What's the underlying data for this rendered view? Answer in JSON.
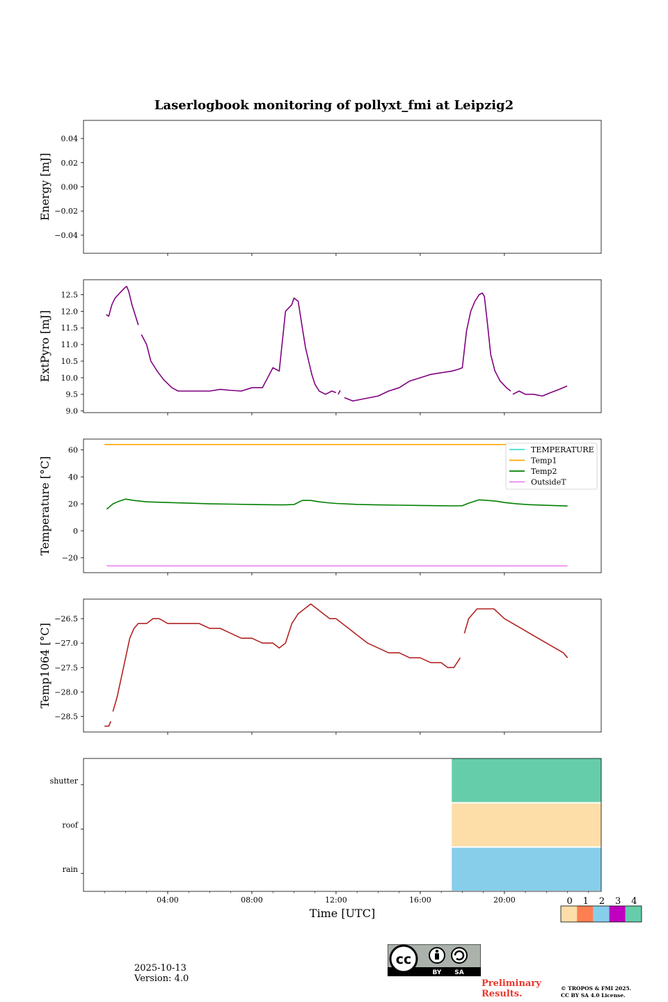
{
  "title": "Laserlogbook monitoring of pollyxt_fmi at Leipzig2",
  "footer": {
    "date": "2025-10-13",
    "version": "Version: 4.0",
    "preliminary_line1": "Preliminary",
    "preliminary_line2": "Results.",
    "copyright_line1": "© TROPOS & FMI 2025.",
    "copyright_line2": "CC BY SA 4.0 License.",
    "license_badge": {
      "by": "BY",
      "sa": "SA",
      "cc": "cc"
    }
  },
  "chart_data": [
    {
      "type": "line",
      "id": "energy",
      "ylabel": "Energy [mJ]",
      "ylim": [
        -0.055,
        0.055
      ],
      "yticks": [
        0.04,
        0.02,
        0.0,
        -0.02,
        -0.04
      ],
      "ytick_labels": [
        "0.04",
        "0.02",
        "0.00",
        "−0.02",
        "−0.04"
      ],
      "series": []
    },
    {
      "type": "line",
      "id": "extpyro",
      "ylabel": "ExtPyro [mJ]",
      "ylim": [
        8.95,
        12.95
      ],
      "yticks": [
        12.5,
        12.0,
        11.5,
        11.0,
        10.5,
        10.0,
        9.5,
        9.0
      ],
      "ytick_labels": [
        "12.5",
        "12.0",
        "11.5",
        "11.0",
        "10.5",
        "10.0",
        "9.5",
        "9.0"
      ],
      "series": [
        {
          "name": "ExtPyro",
          "color": "#800080",
          "x": [
            1.08,
            1.2,
            1.35,
            1.5,
            1.65,
            1.8,
            1.95,
            2.05,
            2.15,
            2.3,
            2.45,
            2.6,
            2.62,
            null,
            2.75,
            3.0,
            3.2,
            3.5,
            3.8,
            4.2,
            4.5,
            5.0,
            5.5,
            6.0,
            6.5,
            7.0,
            7.5,
            8.0,
            8.5,
            9.0,
            9.3,
            9.6,
            9.9,
            10.0,
            10.2,
            10.4,
            10.55,
            10.7,
            10.85,
            11.0,
            11.2,
            11.5,
            11.8,
            12.0,
            null,
            12.1,
            12.2,
            null,
            12.4,
            12.8,
            13.2,
            13.6,
            14.0,
            14.5,
            15.0,
            15.5,
            16.0,
            16.5,
            17.0,
            17.5,
            17.8,
            18.0,
            18.2,
            18.4,
            18.6,
            18.8,
            18.95,
            19.05,
            19.2,
            19.35,
            19.55,
            19.8,
            20.1,
            20.3,
            null,
            20.4,
            20.7,
            21.0,
            21.4,
            21.8,
            22.2,
            22.6,
            22.98
          ],
          "y": [
            11.9,
            11.85,
            12.2,
            12.4,
            12.5,
            12.6,
            12.7,
            12.75,
            12.6,
            12.2,
            11.9,
            11.6,
            11.6,
            null,
            11.3,
            11.0,
            10.5,
            10.2,
            9.95,
            9.7,
            9.6,
            9.6,
            9.6,
            9.6,
            9.65,
            9.62,
            9.6,
            9.7,
            9.7,
            10.3,
            10.2,
            12.0,
            12.2,
            12.4,
            12.3,
            11.5,
            10.9,
            10.5,
            10.1,
            9.8,
            9.6,
            9.5,
            9.6,
            9.55,
            null,
            9.5,
            9.62,
            null,
            9.4,
            9.3,
            9.35,
            9.4,
            9.45,
            9.6,
            9.7,
            9.9,
            10.0,
            10.1,
            10.15,
            10.2,
            10.25,
            10.3,
            11.4,
            12.0,
            12.3,
            12.5,
            12.55,
            12.45,
            11.6,
            10.7,
            10.2,
            9.9,
            9.7,
            9.6,
            null,
            9.5,
            9.6,
            9.5,
            9.5,
            9.45,
            9.55,
            9.65,
            9.75
          ]
        }
      ]
    },
    {
      "type": "line",
      "id": "temperature",
      "ylabel": "Temperature [°C]",
      "ylim": [
        -31,
        68
      ],
      "yticks": [
        60,
        40,
        20,
        0,
        -20
      ],
      "ytick_labels": [
        "60",
        "40",
        "20",
        "0",
        "−20"
      ],
      "legend_position": "top-right",
      "series": [
        {
          "name": "TEMPERATURE",
          "color": "#40e0d0",
          "x": [],
          "y": []
        },
        {
          "name": "Temp1",
          "color": "#ffa500",
          "x": [
            1.0,
            23.0
          ],
          "y": [
            64,
            64
          ]
        },
        {
          "name": "Temp2",
          "color": "#008000",
          "x": [
            1.1,
            1.4,
            1.7,
            2.0,
            2.4,
            3.0,
            4.0,
            5.0,
            6.0,
            7.0,
            8.0,
            9.0,
            9.5,
            10.0,
            10.4,
            10.8,
            11.2,
            11.6,
            12.0,
            13.0,
            14.0,
            15.0,
            16.0,
            17.0,
            17.5,
            18.0,
            18.3,
            18.8,
            19.2,
            19.6,
            20.0,
            20.6,
            21.2,
            22.0,
            23.0
          ],
          "y": [
            16,
            20,
            22,
            23.5,
            22.5,
            21.5,
            21,
            20.5,
            20,
            19.8,
            19.5,
            19.3,
            19.2,
            19.5,
            22.5,
            22.5,
            21.5,
            20.8,
            20.3,
            19.6,
            19.2,
            19,
            18.8,
            18.6,
            18.5,
            18.6,
            20.5,
            23,
            22.5,
            22,
            21,
            20,
            19.4,
            18.9,
            18.4
          ]
        },
        {
          "name": "OutsideT",
          "color": "#ee82ee",
          "x": [
            1.1,
            23.0
          ],
          "y": [
            -26,
            -26
          ]
        }
      ]
    },
    {
      "type": "line",
      "id": "temp1064",
      "ylabel": "Temp1064 [°C]",
      "ylim": [
        -28.82,
        -26.1
      ],
      "yticks": [
        -26.5,
        -27.0,
        -27.5,
        -28.0,
        -28.5
      ],
      "ytick_labels": [
        "−26.5",
        "−27.0",
        "−27.5",
        "−28.0",
        "−28.5"
      ],
      "series": [
        {
          "name": "Temp1064",
          "color": "#b22222",
          "x": [
            1.0,
            1.2,
            1.3,
            null,
            1.4,
            1.6,
            1.8,
            2.0,
            2.2,
            2.4,
            2.6,
            2.8,
            3.0,
            3.3,
            3.6,
            4.0,
            4.5,
            5.0,
            5.5,
            6.0,
            6.5,
            7.0,
            7.5,
            8.0,
            8.5,
            9.0,
            9.3,
            9.6,
            9.9,
            10.2,
            10.5,
            10.8,
            11.1,
            11.4,
            11.7,
            12.0,
            12.3,
            12.6,
            12.9,
            13.2,
            13.5,
            14.0,
            14.5,
            15.0,
            15.5,
            16.0,
            16.5,
            17.0,
            17.3,
            17.6,
            17.9,
            null,
            18.1,
            18.3,
            18.5,
            18.7,
            19.0,
            19.5,
            20.0,
            20.4,
            20.8,
            21.2,
            21.6,
            22.0,
            22.4,
            22.8,
            23.0
          ],
          "y": [
            -28.7,
            -28.7,
            -28.6,
            null,
            -28.4,
            -28.1,
            -27.7,
            -27.3,
            -26.9,
            -26.7,
            -26.6,
            -26.6,
            -26.6,
            -26.5,
            -26.5,
            -26.6,
            -26.6,
            -26.6,
            -26.6,
            -26.7,
            -26.7,
            -26.8,
            -26.9,
            -26.9,
            -27.0,
            -27.0,
            -27.1,
            -27.0,
            -26.6,
            -26.4,
            -26.3,
            -26.2,
            -26.3,
            -26.4,
            -26.5,
            -26.5,
            -26.6,
            -26.7,
            -26.8,
            -26.9,
            -27.0,
            -27.1,
            -27.2,
            -27.2,
            -27.3,
            -27.3,
            -27.4,
            -27.4,
            -27.5,
            -27.5,
            -27.3,
            null,
            -26.8,
            -26.5,
            -26.4,
            -26.3,
            -26.3,
            -26.3,
            -26.5,
            -26.6,
            -26.7,
            -26.8,
            -26.9,
            -27.0,
            -27.1,
            -27.2,
            -27.3
          ]
        }
      ]
    },
    {
      "type": "heatmap",
      "id": "status",
      "rows": [
        "shutter",
        "roof",
        "rain"
      ],
      "xlabel": "Time [UTC]",
      "xlim": [
        0,
        24.6
      ],
      "xticks": [
        4,
        8,
        12,
        16,
        20
      ],
      "xtick_labels": [
        "04:00",
        "08:00",
        "12:00",
        "16:00",
        "20:00"
      ],
      "blocks": [
        {
          "row": "shutter",
          "start": 17.5,
          "end": 24.6,
          "value": 4
        },
        {
          "row": "roof",
          "start": 17.5,
          "end": 24.6,
          "value": 0
        },
        {
          "row": "rain",
          "start": 17.5,
          "end": 24.6,
          "value": 2
        }
      ],
      "colorbar": {
        "ticks": [
          "0",
          "1",
          "2",
          "3",
          "4"
        ],
        "colors": [
          "#fddea9",
          "#ff7f50",
          "#87ceeb",
          "#c000c0",
          "#66cdaa"
        ]
      }
    }
  ]
}
